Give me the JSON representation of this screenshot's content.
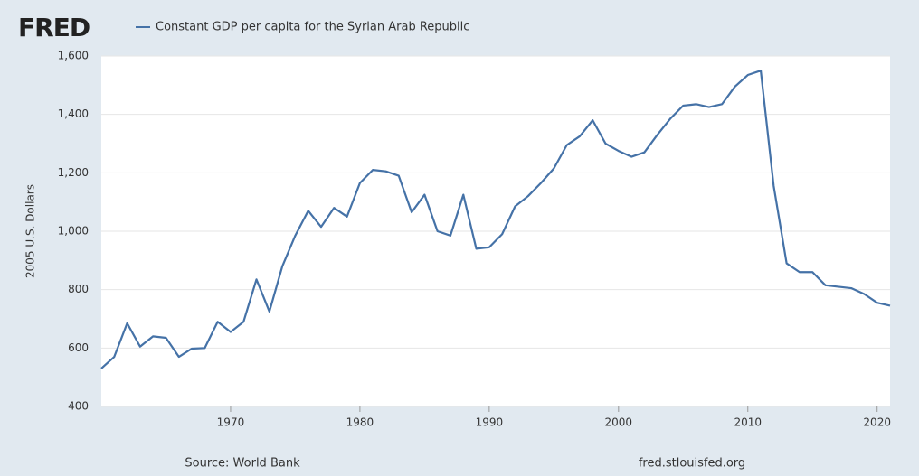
{
  "logo": "FRED",
  "chart_data": {
    "type": "line",
    "legend": "Constant GDP per capita for the Syrian Arab Republic",
    "y_label": "2005 U.S. Dollars",
    "source": "Source: World Bank",
    "site": "fred.stlouisfed.org",
    "x": [
      1960,
      1961,
      1962,
      1963,
      1964,
      1965,
      1966,
      1967,
      1968,
      1969,
      1970,
      1971,
      1972,
      1973,
      1974,
      1975,
      1976,
      1977,
      1978,
      1979,
      1980,
      1981,
      1982,
      1983,
      1984,
      1985,
      1986,
      1987,
      1988,
      1989,
      1990,
      1991,
      1992,
      1993,
      1994,
      1995,
      1996,
      1997,
      1998,
      1999,
      2000,
      2001,
      2002,
      2003,
      2004,
      2005,
      2006,
      2007,
      2008,
      2009,
      2010,
      2011,
      2012,
      2013,
      2014,
      2015,
      2016,
      2017,
      2018,
      2019,
      2020,
      2021
    ],
    "series": [
      {
        "name": "Constant GDP per capita for the Syrian Arab Republic",
        "color": "#4572a7",
        "values": [
          530,
          570,
          685,
          605,
          640,
          635,
          570,
          598,
          600,
          690,
          655,
          690,
          835,
          725,
          880,
          985,
          1070,
          1015,
          1080,
          1050,
          1165,
          1210,
          1205,
          1190,
          1065,
          1125,
          1000,
          985,
          1125,
          940,
          945,
          990,
          1085,
          1120,
          1165,
          1215,
          1295,
          1325,
          1380,
          1300,
          1275,
          1255,
          1270,
          1330,
          1385,
          1430,
          1435,
          1425,
          1435,
          1495,
          1535,
          1550,
          1155,
          890,
          860,
          860,
          815,
          810,
          805,
          785,
          755,
          745
        ]
      }
    ],
    "xlim": [
      1960,
      2021
    ],
    "xticks": [
      1970,
      1980,
      1990,
      2000,
      2010,
      2020
    ],
    "ylim": [
      400,
      1600
    ],
    "yticks": [
      400,
      600,
      800,
      {
        "value": 1000,
        "label": "1,000"
      },
      {
        "value": 1200,
        "label": "1,200"
      },
      {
        "value": 1400,
        "label": "1,400"
      },
      {
        "value": 1600,
        "label": "1,600"
      }
    ],
    "grid": true
  }
}
